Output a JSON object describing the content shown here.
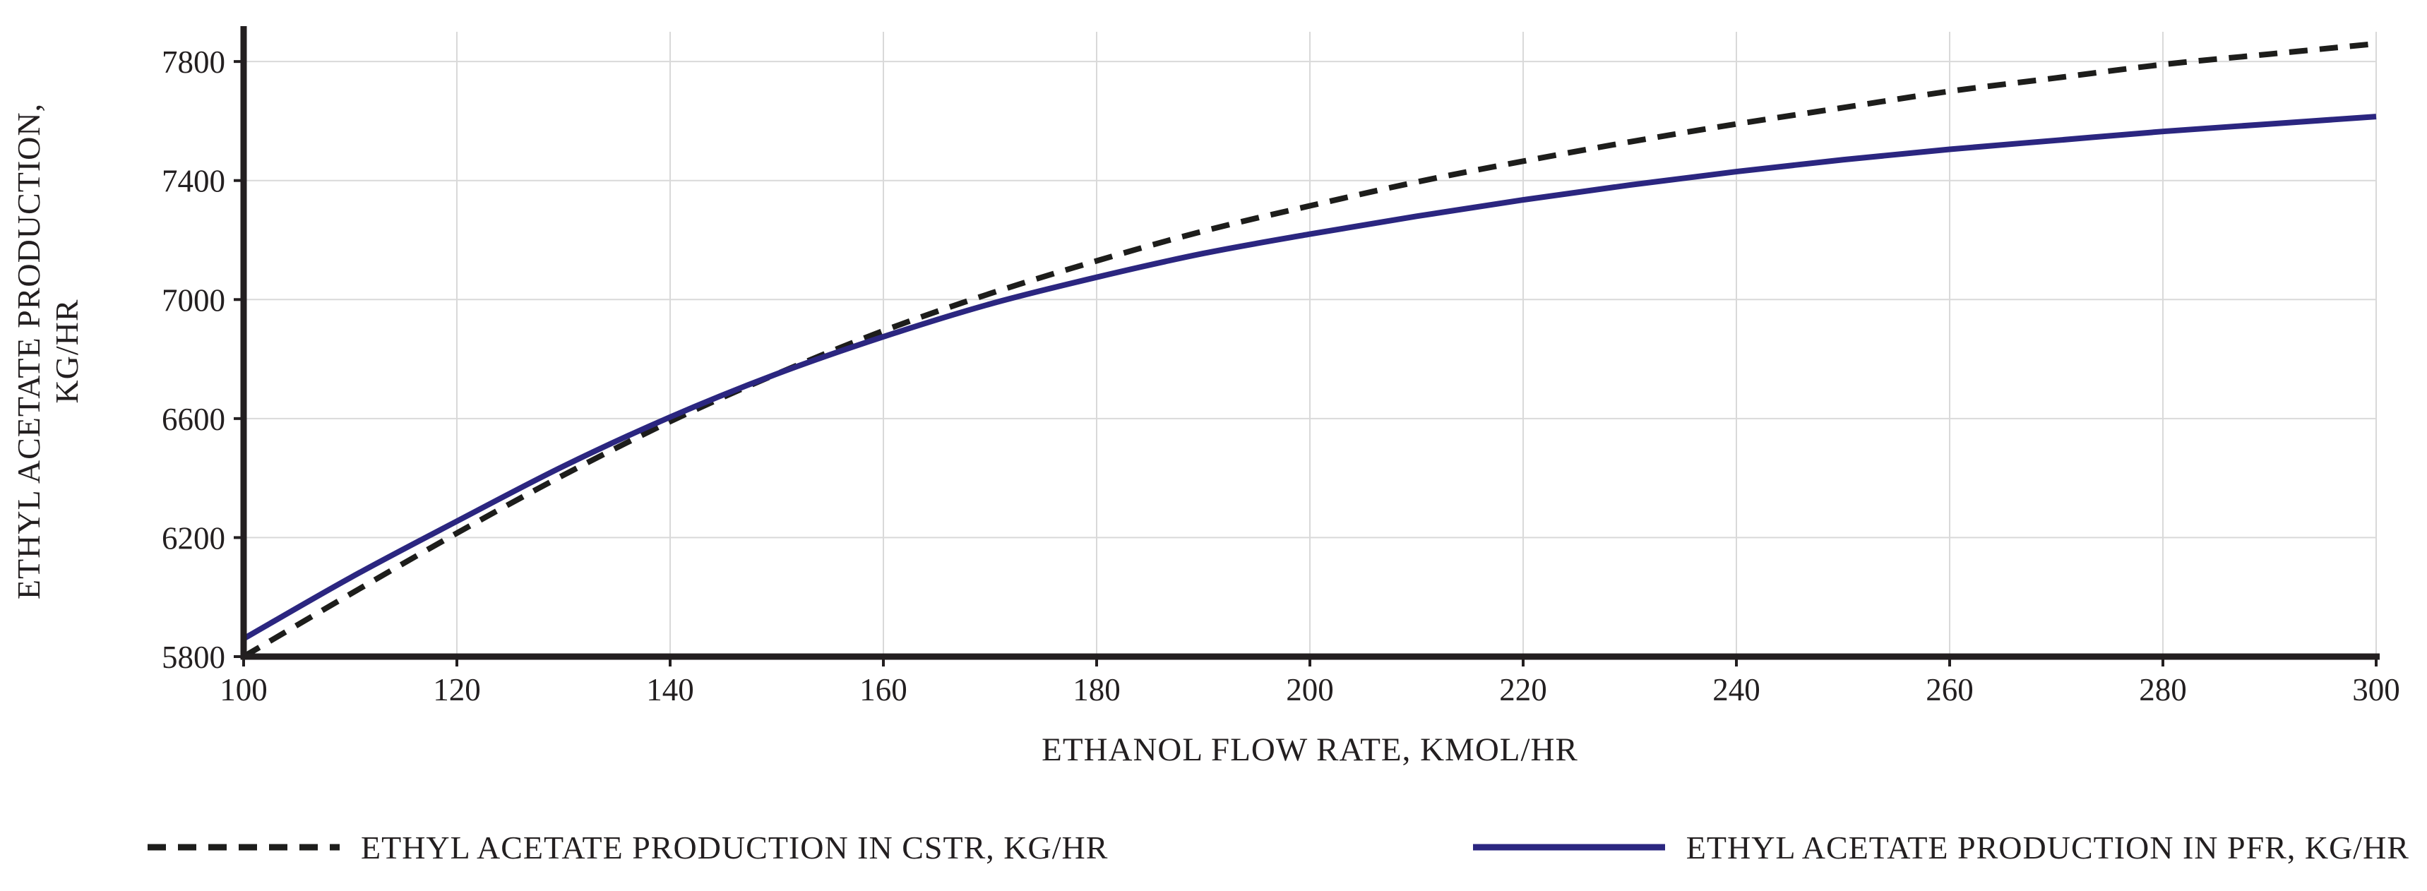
{
  "chart_data": {
    "type": "line",
    "title": "",
    "xlabel": "ETHANOL FLOW RATE, KMOL/HR",
    "ylabel_line1": "ETHYL ACETATE PRODUCTION,",
    "ylabel_line2": "KG/HR",
    "xlim": [
      100,
      300
    ],
    "ylim": [
      5800,
      7900
    ],
    "x_ticks": [
      100,
      120,
      140,
      160,
      180,
      200,
      220,
      240,
      260,
      280,
      300
    ],
    "y_ticks": [
      5800,
      6200,
      6600,
      7000,
      7400,
      7800
    ],
    "grid": true,
    "legend_position": "bottom",
    "x": [
      100,
      110,
      120,
      130,
      140,
      150,
      160,
      170,
      180,
      190,
      200,
      210,
      220,
      230,
      240,
      250,
      260,
      270,
      280,
      290,
      300
    ],
    "series": [
      {
        "name": "ETHYL ACETATE PRODUCTION IN CSTR, KG/HR",
        "style": "dashed",
        "color": "#1d1d1b",
        "values": [
          5800,
          6010,
          6215,
          6410,
          6590,
          6750,
          6895,
          7020,
          7130,
          7230,
          7315,
          7395,
          7465,
          7530,
          7590,
          7645,
          7700,
          7745,
          7790,
          7825,
          7860
        ]
      },
      {
        "name": "ETHYL ACETATE PRODUCTION IN PFR, KG/HR",
        "style": "solid",
        "color": "#2b2680",
        "values": [
          5860,
          6065,
          6255,
          6440,
          6605,
          6750,
          6875,
          6985,
          7075,
          7155,
          7220,
          7280,
          7335,
          7385,
          7430,
          7470,
          7505,
          7535,
          7565,
          7590,
          7615
        ]
      }
    ]
  },
  "colors": {
    "background": "#ffffff",
    "grid": "#d9d9d9",
    "axis": "#231f20"
  }
}
